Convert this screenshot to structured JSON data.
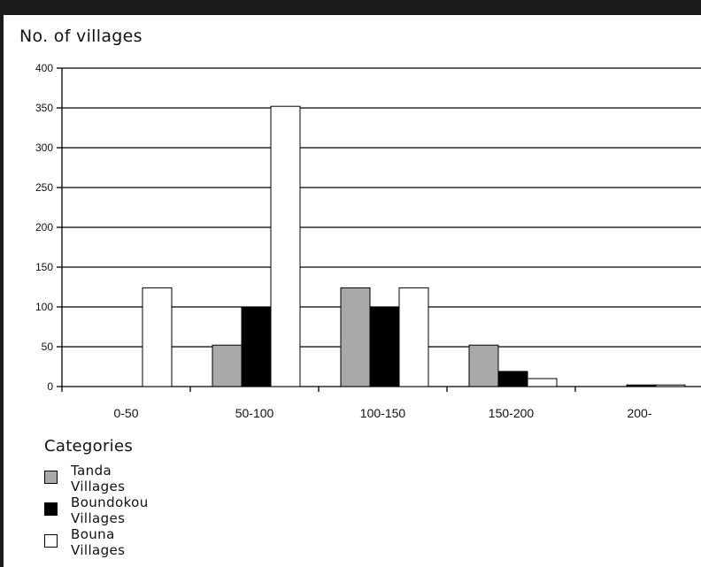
{
  "chart_data": {
    "type": "bar",
    "title": "",
    "ylabel": "No. of villages",
    "xlabel": "",
    "categories": [
      "0-50",
      "50-100",
      "100-150",
      "150-200",
      "200-"
    ],
    "series": [
      {
        "name": "Tanda Villages",
        "color": "#a9a9a9",
        "values": [
          0,
          52,
          124,
          52,
          0
        ]
      },
      {
        "name": "Boundokou Villages",
        "color": "#000000",
        "values": [
          0,
          99,
          99,
          19,
          2
        ]
      },
      {
        "name": "Bouna Villages",
        "color": "#ffffff",
        "values": [
          124,
          352,
          124,
          10,
          2
        ]
      }
    ],
    "ylim": [
      0,
      400
    ],
    "yticks": [
      0,
      50,
      100,
      150,
      200,
      250,
      300,
      350,
      400
    ],
    "grid": true,
    "legend_title": "Categories",
    "legend_position": "bottom-left"
  }
}
